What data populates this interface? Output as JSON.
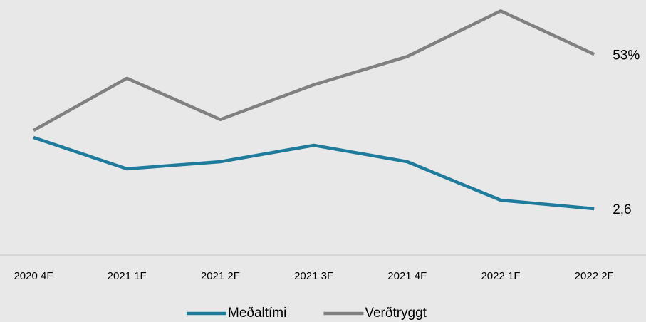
{
  "chart_data": {
    "type": "line",
    "categories": [
      "2020 4F",
      "2021 1F",
      "2021 2F",
      "2021 3F",
      "2021 4F",
      "2022 1F",
      "2022 2F"
    ],
    "series": [
      {
        "name": "Meðaltími",
        "color": "#1f7b9c",
        "axis": "y2",
        "values": [
          3.6,
          3.16,
          3.26,
          3.49,
          3.26,
          2.72,
          2.6
        ],
        "value_labels": [
          null,
          null,
          null,
          null,
          null,
          null,
          "2,6"
        ]
      },
      {
        "name": "Verðtryggt",
        "color": "#808080",
        "values": [
          49.5,
          51.9,
          50.0,
          51.6,
          52.9,
          55.0,
          53
        ],
        "value_labels": [
          null,
          null,
          null,
          null,
          null,
          null,
          "53%"
        ]
      }
    ],
    "ylim": [
      43.7,
      55.5
    ],
    "y2lim": [
      1.93,
      5.53
    ],
    "legend": "bottom"
  }
}
